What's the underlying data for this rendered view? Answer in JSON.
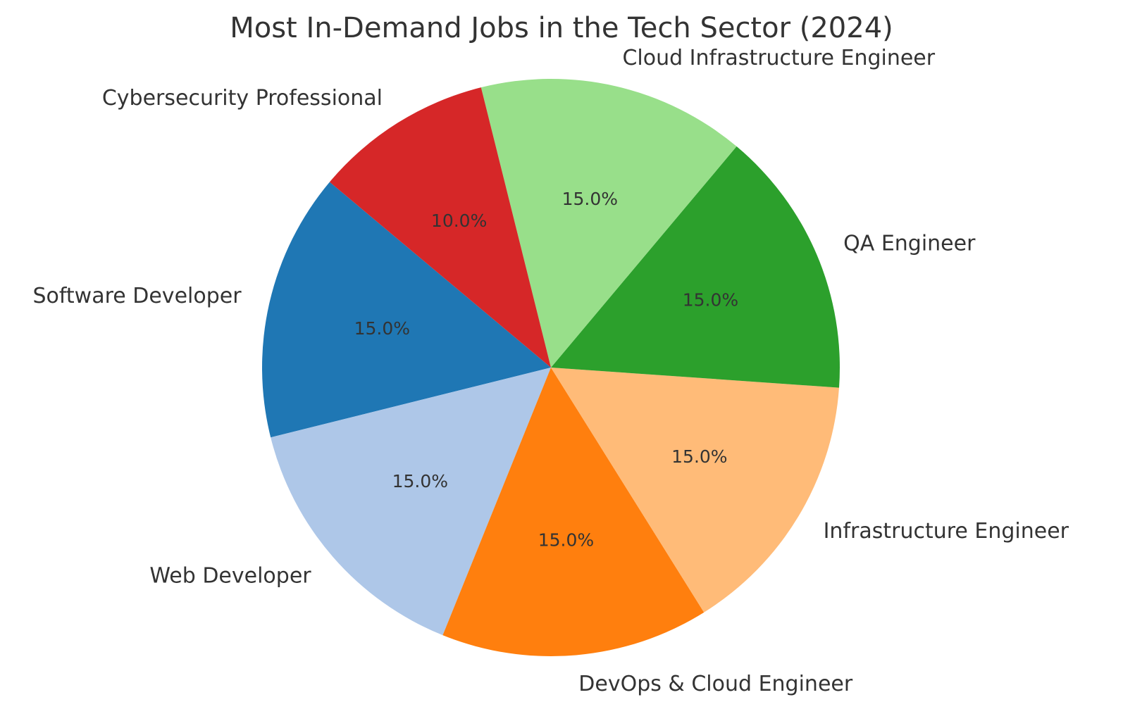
{
  "chart_data": {
    "type": "pie",
    "title": "Most In-Demand Jobs in the Tech Sector (2024)",
    "labels": [
      "Software Developer",
      "Web Developer",
      "DevOps & Cloud Engineer",
      "Infrastructure Engineer",
      "QA Engineer",
      "Cloud Infrastructure Engineer",
      "Cybersecurity Professional"
    ],
    "values": [
      15,
      15,
      15,
      15,
      15,
      15,
      10
    ],
    "percent_labels": [
      "15.0%",
      "15.0%",
      "15.0%",
      "15.0%",
      "15.0%",
      "15.0%",
      "10.0%"
    ],
    "colors": [
      "#1f77b4",
      "#aec7e8",
      "#ff7f0e",
      "#ffbb78",
      "#2ca02c",
      "#98df8a",
      "#d62728"
    ],
    "start_angle_deg": 140,
    "direction": "counterclockwise",
    "legend": "none"
  }
}
